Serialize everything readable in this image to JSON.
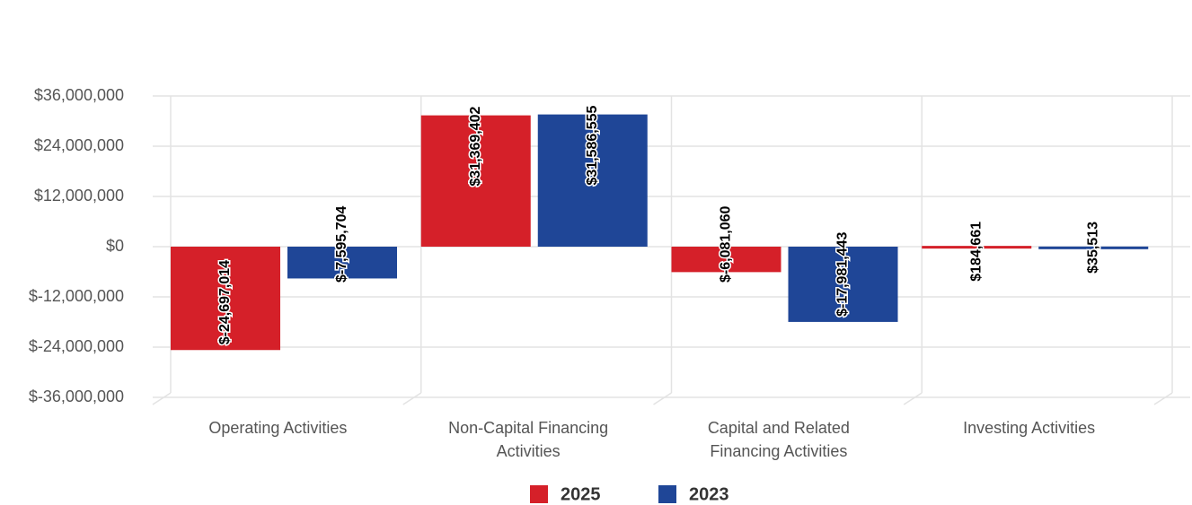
{
  "chart_data": {
    "type": "bar",
    "categories": [
      "Operating Activities",
      "Non-Capital Financing Activities",
      "Capital and Related Financing Activities",
      "Investing Activities"
    ],
    "series": [
      {
        "name": "2025",
        "color": "#d52029",
        "values": [
          -24697014,
          31369402,
          -6081060,
          184661
        ],
        "value_labels": [
          "$-24,697,014",
          "$31,369,402",
          "$-6,081,060",
          "$184,661"
        ]
      },
      {
        "name": "2023",
        "color": "#1f4697",
        "values": [
          -7595704,
          31586555,
          -17981443,
          35513
        ],
        "value_labels": [
          "$-7,595,704",
          "$31,586,555",
          "$-17,981,443",
          "$35,513"
        ]
      }
    ],
    "ylim": [
      -36000000,
      36000000
    ],
    "yticks": [
      {
        "value": -36000000,
        "label": "$-36,000,000"
      },
      {
        "value": -24000000,
        "label": "$-24,000,000"
      },
      {
        "value": -12000000,
        "label": "$-12,000,000"
      },
      {
        "value": 0,
        "label": "$0"
      },
      {
        "value": 12000000,
        "label": "$12,000,000"
      },
      {
        "value": 24000000,
        "label": "$24,000,000"
      },
      {
        "value": 36000000,
        "label": "$36,000,000"
      }
    ],
    "grid": true,
    "legend": "bottom"
  }
}
